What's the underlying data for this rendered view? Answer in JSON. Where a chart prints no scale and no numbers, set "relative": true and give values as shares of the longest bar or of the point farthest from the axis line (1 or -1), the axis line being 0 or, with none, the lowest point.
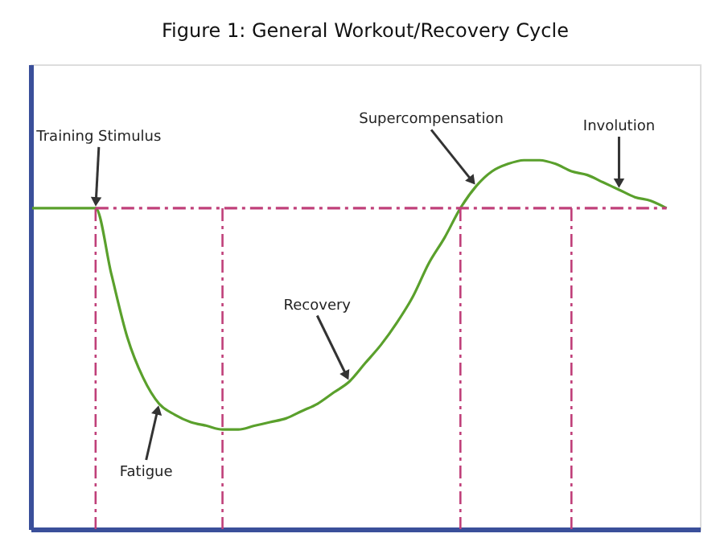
{
  "chart_data": {
    "type": "line",
    "title": "Figure 1:  General Workout/Recovery Cycle",
    "relative": true,
    "tick_labels": false,
    "grid": false,
    "legend": false,
    "marker": "none",
    "categories": [
      null,
      null,
      null,
      null,
      null,
      null,
      null,
      null,
      null,
      null,
      null,
      null,
      null,
      null,
      null,
      null,
      null,
      null,
      null,
      null,
      null,
      null,
      null,
      null,
      null,
      null,
      null,
      null,
      null,
      null,
      null,
      null,
      null,
      null,
      null,
      null,
      null,
      null,
      null,
      null,
      null
    ],
    "series": [
      {
        "color": "#5aa02c",
        "line_style": "solid",
        "values": [
          0.87,
          0.87,
          0.87,
          0.87,
          0.87,
          0.69,
          0.52,
          0.41,
          0.34,
          0.31,
          0.29,
          0.28,
          0.27,
          0.27,
          0.28,
          0.29,
          0.3,
          0.32,
          0.34,
          0.37,
          0.4,
          0.45,
          0.5,
          0.56,
          0.63,
          0.72,
          0.79,
          0.87,
          0.93,
          0.97,
          0.99,
          1,
          1,
          0.99,
          0.97,
          0.96,
          0.94,
          0.92,
          0.9,
          0.89,
          0.87
        ]
      },
      {
        "color": "#c0407a",
        "line_style": "dashdot",
        "values": [
          null,
          null,
          null,
          null,
          0.87,
          0.87,
          0.87,
          0.87,
          0.87,
          0.87,
          0.87,
          0.87,
          0.87,
          0.87,
          0.87,
          0.87,
          0.87,
          0.87,
          0.87,
          0.87,
          0.87,
          0.87,
          0.87,
          0.87,
          0.87,
          0.87,
          0.87,
          0.87,
          0.87,
          0.87,
          0.87,
          0.87,
          0.87,
          0.87,
          0.87,
          0.87,
          0.87,
          0.87,
          0.87,
          0.87,
          0.87
        ]
      }
    ],
    "annotations": [
      "Training Stimulus",
      "Fatigue",
      "Recovery",
      "Supercompensation",
      "Involution"
    ]
  }
}
